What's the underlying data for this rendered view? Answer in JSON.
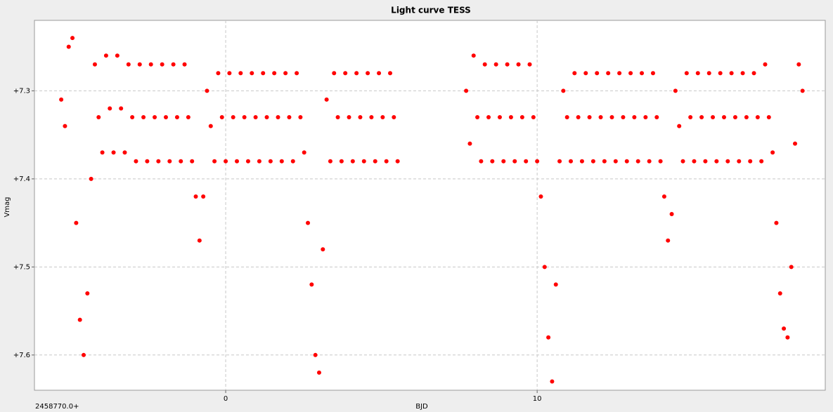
{
  "chart_data": {
    "type": "scatter",
    "title": "Light curve TESS",
    "x_label": "BJD",
    "y_label": "Vmag",
    "x_offset_note": "2458770.0+",
    "color": "#ff0000",
    "grid": true,
    "y_inverted": true,
    "xlim": [
      -6.14,
      19.25
    ],
    "xticks": [
      0,
      10
    ],
    "ylim": [
      7.64,
      7.22
    ],
    "yticks": [
      {
        "value": 7.3,
        "label": "+7.3"
      },
      {
        "value": 7.4,
        "label": "+7.4"
      },
      {
        "value": 7.5,
        "label": "+7.5"
      },
      {
        "value": 7.6,
        "label": "+7.6"
      }
    ],
    "x": [
      -5.28,
      -5.16,
      -5.04,
      -4.92,
      -4.8,
      -4.68,
      -4.56,
      -4.44,
      -4.32,
      -4.2,
      -4.08,
      -3.96,
      -3.84,
      -3.72,
      -3.6,
      -3.48,
      -3.36,
      -3.24,
      -3.12,
      -3.0,
      -2.88,
      -2.76,
      -2.64,
      -2.52,
      -2.4,
      -2.28,
      -2.16,
      -2.04,
      -1.92,
      -1.8,
      -1.68,
      -1.56,
      -1.44,
      -1.32,
      -1.2,
      -1.08,
      -0.96,
      -0.84,
      -0.72,
      -0.6,
      -0.48,
      -0.36,
      -0.24,
      -0.12,
      0.0,
      0.12,
      0.24,
      0.36,
      0.48,
      0.6,
      0.72,
      0.84,
      0.96,
      1.08,
      1.2,
      1.32,
      1.44,
      1.56,
      1.68,
      1.8,
      1.92,
      2.04,
      2.16,
      2.28,
      2.4,
      2.52,
      2.64,
      2.76,
      2.88,
      3.0,
      3.12,
      3.24,
      3.36,
      3.48,
      3.6,
      3.72,
      3.84,
      3.96,
      4.08,
      4.2,
      4.32,
      4.44,
      4.56,
      4.68,
      4.8,
      4.92,
      5.04,
      5.16,
      5.28,
      5.4,
      5.52,
      7.72,
      7.84,
      7.96,
      8.08,
      8.2,
      8.32,
      8.44,
      8.56,
      8.68,
      8.8,
      8.92,
      9.04,
      9.16,
      9.28,
      9.4,
      9.52,
      9.64,
      9.76,
      9.88,
      10.0,
      10.12,
      10.24,
      10.36,
      10.48,
      10.6,
      10.72,
      10.84,
      10.96,
      11.08,
      11.2,
      11.32,
      11.44,
      11.56,
      11.68,
      11.8,
      11.92,
      12.04,
      12.16,
      12.28,
      12.4,
      12.52,
      12.64,
      12.76,
      12.88,
      13.0,
      13.12,
      13.24,
      13.36,
      13.48,
      13.6,
      13.72,
      13.84,
      13.96,
      14.08,
      14.2,
      14.32,
      14.44,
      14.56,
      14.68,
      14.8,
      14.92,
      15.04,
      15.16,
      15.28,
      15.4,
      15.52,
      15.64,
      15.76,
      15.88,
      16.0,
      16.12,
      16.24,
      16.36,
      16.48,
      16.6,
      16.72,
      16.84,
      16.96,
      17.08,
      17.2,
      17.32,
      17.44,
      17.56,
      17.68,
      17.8,
      17.92,
      18.04,
      18.16,
      18.28,
      18.4,
      18.52
    ],
    "values": [
      7.31,
      7.34,
      7.25,
      7.24,
      7.45,
      7.56,
      7.6,
      7.53,
      7.4,
      7.27,
      7.33,
      7.37,
      7.26,
      7.32,
      7.37,
      7.26,
      7.32,
      7.37,
      7.27,
      7.33,
      7.38,
      7.27,
      7.33,
      7.38,
      7.27,
      7.33,
      7.38,
      7.27,
      7.33,
      7.38,
      7.27,
      7.33,
      7.38,
      7.27,
      7.33,
      7.38,
      7.42,
      7.47,
      7.42,
      7.3,
      7.34,
      7.38,
      7.28,
      7.33,
      7.38,
      7.28,
      7.33,
      7.38,
      7.28,
      7.33,
      7.38,
      7.28,
      7.33,
      7.38,
      7.28,
      7.33,
      7.38,
      7.28,
      7.33,
      7.38,
      7.28,
      7.33,
      7.38,
      7.28,
      7.33,
      7.37,
      7.45,
      7.52,
      7.6,
      7.62,
      7.48,
      7.31,
      7.38,
      7.28,
      7.33,
      7.38,
      7.28,
      7.33,
      7.38,
      7.28,
      7.33,
      7.38,
      7.28,
      7.33,
      7.38,
      7.28,
      7.33,
      7.38,
      7.28,
      7.33,
      7.38,
      7.3,
      7.36,
      7.26,
      7.33,
      7.38,
      7.27,
      7.33,
      7.38,
      7.27,
      7.33,
      7.38,
      7.27,
      7.33,
      7.38,
      7.27,
      7.33,
      7.38,
      7.27,
      7.33,
      7.38,
      7.42,
      7.5,
      7.58,
      7.63,
      7.52,
      7.38,
      7.3,
      7.33,
      7.38,
      7.28,
      7.33,
      7.38,
      7.28,
      7.33,
      7.38,
      7.28,
      7.33,
      7.38,
      7.28,
      7.33,
      7.38,
      7.28,
      7.33,
      7.38,
      7.28,
      7.33,
      7.38,
      7.28,
      7.33,
      7.38,
      7.28,
      7.33,
      7.38,
      7.42,
      7.47,
      7.44,
      7.3,
      7.34,
      7.38,
      7.28,
      7.33,
      7.38,
      7.28,
      7.33,
      7.38,
      7.28,
      7.33,
      7.38,
      7.28,
      7.33,
      7.38,
      7.28,
      7.33,
      7.38,
      7.28,
      7.33,
      7.38,
      7.28,
      7.33,
      7.38,
      7.27,
      7.33,
      7.37,
      7.45,
      7.53,
      7.57,
      7.58,
      7.5,
      7.36,
      7.27,
      7.3
    ]
  }
}
